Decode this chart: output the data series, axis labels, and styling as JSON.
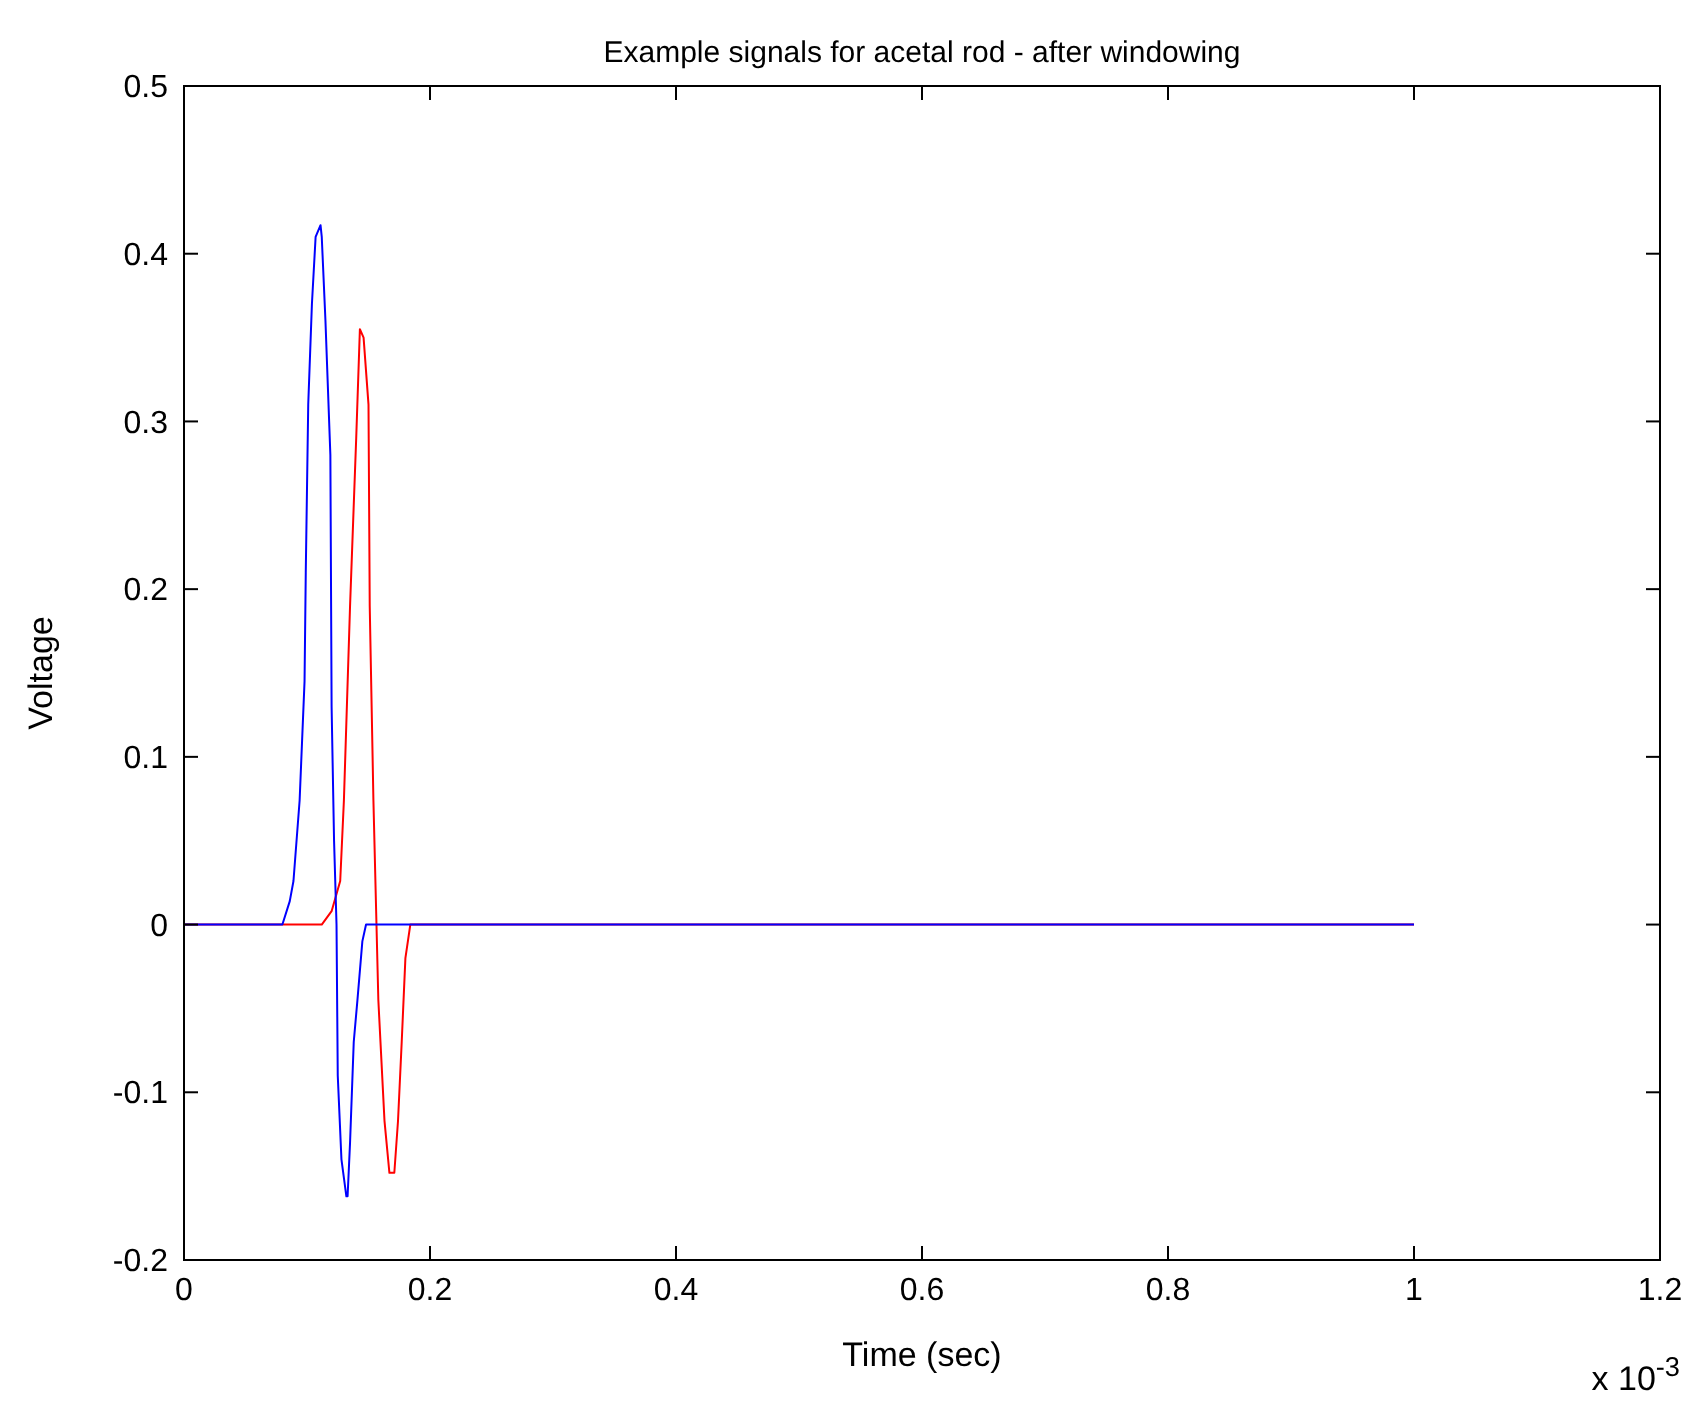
{
  "chart_data": {
    "type": "line",
    "title": "Example signals for acetal rod - after windowing",
    "xlabel": "Time (sec)",
    "ylabel": "Voltage",
    "annotations": [
      "x 10$^{-3}$"
    ],
    "series": [
      {
        "color": "#ff0000",
        "x": [
          0,
          0.112,
          0.12,
          0.127,
          0.13,
          0.135,
          0.14,
          0.143,
          0.146,
          0.15,
          0.151,
          0.154,
          0.158,
          0.163,
          0.167,
          0.171,
          0.174,
          0.177,
          0.18,
          0.184,
          1
        ],
        "values": [
          0,
          0,
          0.008,
          0.026,
          0.074,
          0.19,
          0.29,
          0.355,
          0.35,
          0.31,
          0.19,
          0.074,
          -0.045,
          -0.117,
          -0.148,
          -0.148,
          -0.117,
          -0.07,
          -0.02,
          0,
          0
        ]
      },
      {
        "color": "#0000ff",
        "x": [
          0,
          0.078,
          0.08,
          0.086,
          0.089,
          0.094,
          0.098,
          0.099,
          0.101,
          0.104,
          0.107,
          0.111,
          0.112,
          0.115,
          0.119,
          0.12,
          0.122,
          0.124,
          0.125,
          0.128,
          0.132,
          0.133,
          0.135,
          0.138,
          0.141,
          0.145,
          0.148,
          1
        ],
        "values": [
          0,
          0,
          0,
          0.014,
          0.026,
          0.074,
          0.145,
          0.21,
          0.31,
          0.37,
          0.41,
          0.417,
          0.41,
          0.36,
          0.28,
          0.13,
          0.05,
          0,
          -0.09,
          -0.14,
          -0.162,
          -0.162,
          -0.13,
          -0.07,
          -0.045,
          -0.01,
          0,
          0
        ]
      }
    ],
    "xlim": [
      0,
      1.2
    ],
    "xticks": [
      0,
      0.2,
      0.4,
      0.6,
      0.8,
      1,
      1.2
    ],
    "ylim": [
      -0.2,
      0.5
    ],
    "yticks": [
      -0.2,
      -0.1,
      0,
      0.1,
      0.2,
      0.3,
      0.4,
      0.5
    ],
    "grid": false
  }
}
